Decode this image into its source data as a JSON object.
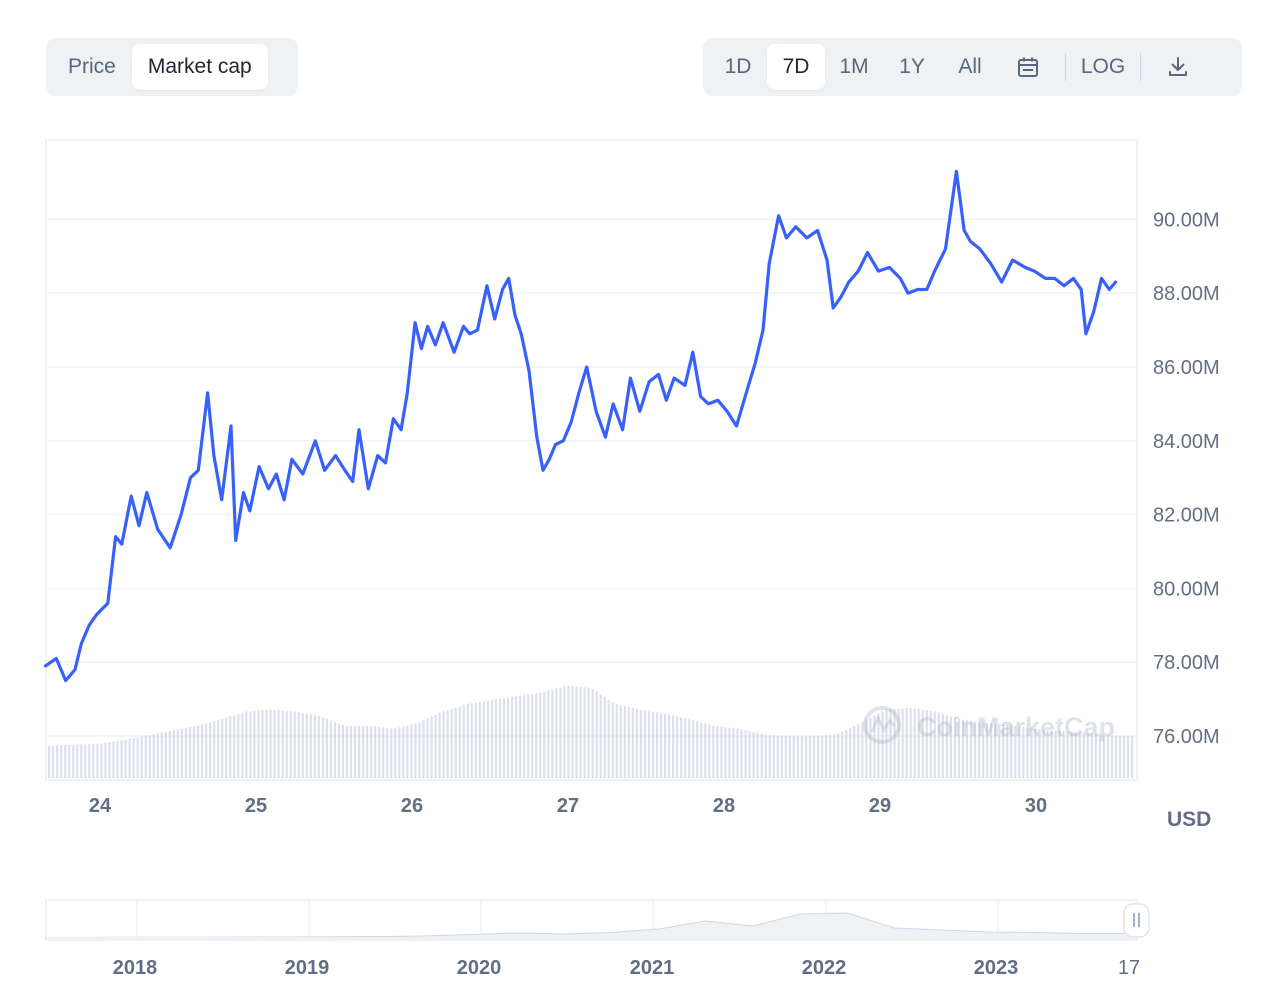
{
  "view_toggle": {
    "items": [
      "Price",
      "Market cap"
    ],
    "active": 1
  },
  "range_toggle": {
    "items": [
      "1D",
      "7D",
      "1M",
      "1Y",
      "All"
    ],
    "active": 1,
    "log_label": "LOG"
  },
  "icons": {
    "calendar": "calendar-icon",
    "download": "download-icon",
    "handle": "range-handle-icon"
  },
  "colors": {
    "line": "#3861fb",
    "grid": "#eff2f5",
    "volume": "#cfd6e4"
  },
  "currency_label": "USD",
  "watermark": "CoinMarketCap",
  "navigator": {
    "years": [
      "2018",
      "2019",
      "2020",
      "2021",
      "2022",
      "2023"
    ],
    "end_label": "17"
  },
  "chart_data": {
    "type": "line",
    "x_ticks": [
      "24",
      "25",
      "26",
      "27",
      "28",
      "29",
      "30"
    ],
    "y_ticks": [
      "76.00M",
      "78.00M",
      "80.00M",
      "82.00M",
      "84.00M",
      "86.00M",
      "88.00M",
      "90.00M"
    ],
    "ylim": [
      75.2,
      92.4
    ],
    "xlim": [
      23.65,
      30.65
    ],
    "grid": true,
    "legend": "none",
    "series": [
      {
        "values": [
          [
            23.65,
            77.9
          ],
          [
            23.72,
            78.1
          ],
          [
            23.78,
            77.5
          ],
          [
            23.84,
            77.8
          ],
          [
            23.88,
            78.5
          ],
          [
            23.93,
            79.0
          ],
          [
            23.98,
            79.3
          ],
          [
            24.05,
            79.6
          ],
          [
            24.1,
            81.4
          ],
          [
            24.14,
            81.2
          ],
          [
            24.2,
            82.5
          ],
          [
            24.25,
            81.7
          ],
          [
            24.3,
            82.6
          ],
          [
            24.37,
            81.6
          ],
          [
            24.45,
            81.1
          ],
          [
            24.52,
            82.0
          ],
          [
            24.58,
            83.0
          ],
          [
            24.63,
            83.2
          ],
          [
            24.69,
            85.3
          ],
          [
            24.73,
            83.6
          ],
          [
            24.78,
            82.4
          ],
          [
            24.84,
            84.4
          ],
          [
            24.87,
            81.3
          ],
          [
            24.92,
            82.6
          ],
          [
            24.96,
            82.1
          ],
          [
            25.02,
            83.3
          ],
          [
            25.08,
            82.7
          ],
          [
            25.13,
            83.1
          ],
          [
            25.18,
            82.4
          ],
          [
            25.23,
            83.5
          ],
          [
            25.3,
            83.1
          ],
          [
            25.38,
            84.0
          ],
          [
            25.44,
            83.2
          ],
          [
            25.51,
            83.6
          ],
          [
            25.57,
            83.2
          ],
          [
            25.62,
            82.9
          ],
          [
            25.66,
            84.3
          ],
          [
            25.72,
            82.7
          ],
          [
            25.78,
            83.6
          ],
          [
            25.83,
            83.4
          ],
          [
            25.88,
            84.6
          ],
          [
            25.93,
            84.3
          ],
          [
            25.97,
            85.3
          ],
          [
            26.02,
            87.2
          ],
          [
            26.06,
            86.5
          ],
          [
            26.1,
            87.1
          ],
          [
            26.15,
            86.6
          ],
          [
            26.2,
            87.2
          ],
          [
            26.27,
            86.4
          ],
          [
            26.33,
            87.1
          ],
          [
            26.37,
            86.9
          ],
          [
            26.42,
            87.0
          ],
          [
            26.48,
            88.2
          ],
          [
            26.53,
            87.3
          ],
          [
            26.58,
            88.1
          ],
          [
            26.62,
            88.4
          ],
          [
            26.66,
            87.4
          ],
          [
            26.7,
            86.9
          ],
          [
            26.75,
            85.9
          ],
          [
            26.8,
            84.1
          ],
          [
            26.84,
            83.2
          ],
          [
            26.88,
            83.5
          ],
          [
            26.92,
            83.9
          ],
          [
            26.97,
            84.0
          ],
          [
            27.02,
            84.5
          ],
          [
            27.07,
            85.3
          ],
          [
            27.12,
            86.0
          ],
          [
            27.18,
            84.8
          ],
          [
            27.24,
            84.1
          ],
          [
            27.29,
            85.0
          ],
          [
            27.35,
            84.3
          ],
          [
            27.4,
            85.7
          ],
          [
            27.46,
            84.8
          ],
          [
            27.52,
            85.6
          ],
          [
            27.58,
            85.8
          ],
          [
            27.63,
            85.1
          ],
          [
            27.68,
            85.7
          ],
          [
            27.75,
            85.5
          ],
          [
            27.8,
            86.4
          ],
          [
            27.85,
            85.2
          ],
          [
            27.9,
            85.0
          ],
          [
            27.96,
            85.1
          ],
          [
            28.02,
            84.8
          ],
          [
            28.08,
            84.4
          ],
          [
            28.15,
            85.4
          ],
          [
            28.2,
            86.1
          ],
          [
            28.25,
            87.0
          ],
          [
            28.29,
            88.8
          ],
          [
            28.35,
            90.1
          ],
          [
            28.4,
            89.5
          ],
          [
            28.46,
            89.8
          ],
          [
            28.53,
            89.5
          ],
          [
            28.6,
            89.7
          ],
          [
            28.66,
            88.9
          ],
          [
            28.7,
            87.6
          ],
          [
            28.75,
            87.9
          ],
          [
            28.8,
            88.3
          ],
          [
            28.86,
            88.6
          ],
          [
            28.92,
            89.1
          ],
          [
            28.99,
            88.6
          ],
          [
            29.06,
            88.7
          ],
          [
            29.13,
            88.4
          ],
          [
            29.18,
            88.0
          ],
          [
            29.24,
            88.1
          ],
          [
            29.3,
            88.1
          ],
          [
            29.35,
            88.6
          ],
          [
            29.42,
            89.2
          ],
          [
            29.49,
            91.3
          ],
          [
            29.54,
            89.7
          ],
          [
            29.58,
            89.4
          ],
          [
            29.64,
            89.2
          ],
          [
            29.71,
            88.8
          ],
          [
            29.78,
            88.3
          ],
          [
            29.85,
            88.9
          ],
          [
            29.93,
            88.7
          ],
          [
            29.99,
            88.6
          ],
          [
            30.06,
            88.4
          ],
          [
            30.12,
            88.4
          ],
          [
            30.18,
            88.2
          ],
          [
            30.24,
            88.4
          ],
          [
            30.29,
            88.1
          ],
          [
            30.32,
            86.9
          ],
          [
            30.37,
            87.5
          ],
          [
            30.42,
            88.4
          ],
          [
            30.47,
            88.1
          ],
          [
            30.51,
            88.3
          ]
        ]
      }
    ],
    "volume": [
      0.34,
      0.35,
      0.36,
      0.4,
      0.45,
      0.5,
      0.55,
      0.62,
      0.7,
      0.72,
      0.7,
      0.65,
      0.55,
      0.55,
      0.52,
      0.58,
      0.7,
      0.78,
      0.82,
      0.86,
      0.9,
      0.97,
      0.95,
      0.78,
      0.72,
      0.68,
      0.62,
      0.55,
      0.52,
      0.46,
      0.44,
      0.44,
      0.46,
      0.58,
      0.72,
      0.74,
      0.7,
      0.62,
      0.58,
      0.56,
      0.52,
      0.5,
      0.48,
      0.45,
      0.44
    ]
  }
}
